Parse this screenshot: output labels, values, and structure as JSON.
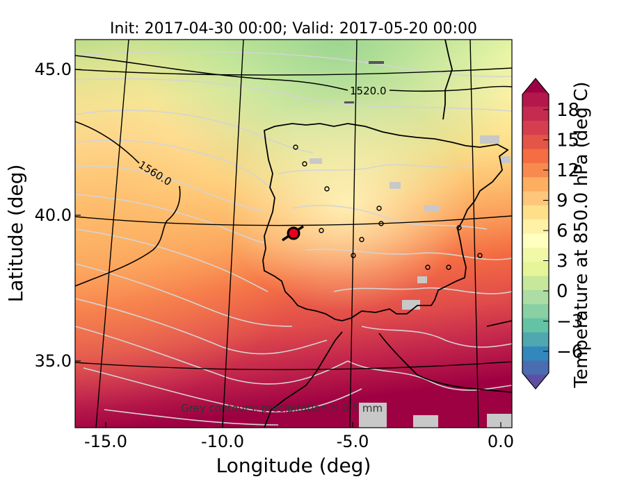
{
  "title": "Init: 2017-04-30 00:00; Valid: 2017-05-20 00:00",
  "axes": {
    "xlabel": "Longitude (deg)",
    "ylabel": "Latitude (deg)",
    "xticks": [
      "-15.0",
      "-10.0",
      "-5.0",
      "0.0"
    ],
    "yticks": [
      "45.0",
      "40.0",
      "35.0"
    ]
  },
  "colorbar": {
    "label": "Temperature at 850.0 hPa (deg C)",
    "ticks": [
      "18",
      "15",
      "12",
      "9",
      "6",
      "3",
      "0",
      "−3",
      "−6"
    ],
    "colors": {
      "hot": "#9e0142",
      "warm": "#f46d43",
      "mild": "#fdae61",
      "pale": "#fee08b",
      "cool": "#e6f598",
      "green": "#66c2a5",
      "blue": "#5e4fa2"
    }
  },
  "contour_labels": [
    "1520.0",
    "1560.0"
  ],
  "note": "Grey contours: precipitation > 0.5 mm",
  "marker": {
    "label": "station",
    "color": "#e8001e"
  }
}
